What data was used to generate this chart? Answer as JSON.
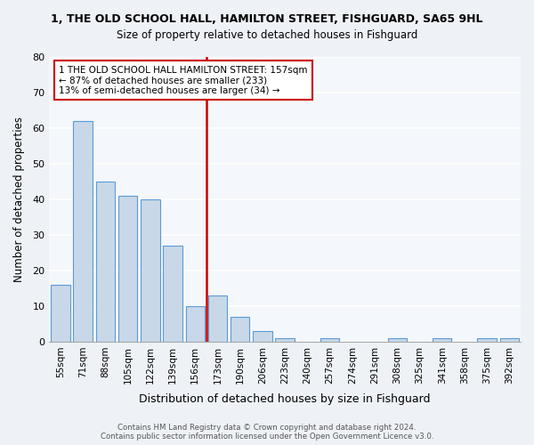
{
  "title": "1, THE OLD SCHOOL HALL, HAMILTON STREET, FISHGUARD, SA65 9HL",
  "subtitle": "Size of property relative to detached houses in Fishguard",
  "xlabel": "Distribution of detached houses by size in Fishguard",
  "ylabel": "Number of detached properties",
  "bar_labels": [
    "55sqm",
    "71sqm",
    "88sqm",
    "105sqm",
    "122sqm",
    "139sqm",
    "156sqm",
    "173sqm",
    "190sqm",
    "206sqm",
    "223sqm",
    "240sqm",
    "257sqm",
    "274sqm",
    "291sqm",
    "308sqm",
    "325sqm",
    "341sqm",
    "358sqm",
    "375sqm",
    "392sqm"
  ],
  "bar_values": [
    16,
    62,
    45,
    41,
    40,
    27,
    10,
    13,
    7,
    3,
    1,
    0,
    1,
    0,
    0,
    1,
    0,
    1,
    0,
    1,
    1
  ],
  "bar_color": "#c8d8e8",
  "bar_edge_color": "#5b9bd5",
  "vline_x": 6.5,
  "vline_color": "#cc0000",
  "ylim": [
    0,
    80
  ],
  "yticks": [
    0,
    10,
    20,
    30,
    40,
    50,
    60,
    70,
    80
  ],
  "annotation_title": "1 THE OLD SCHOOL HALL HAMILTON STREET: 157sqm",
  "annotation_line1": "← 87% of detached houses are smaller (233)",
  "annotation_line2": "13% of semi-detached houses are larger (34) →",
  "footer1": "Contains HM Land Registry data © Crown copyright and database right 2024.",
  "footer2": "Contains public sector information licensed under the Open Government Licence v3.0.",
  "bg_color": "#eef2f7",
  "plot_bg_color": "#f4f7fb"
}
